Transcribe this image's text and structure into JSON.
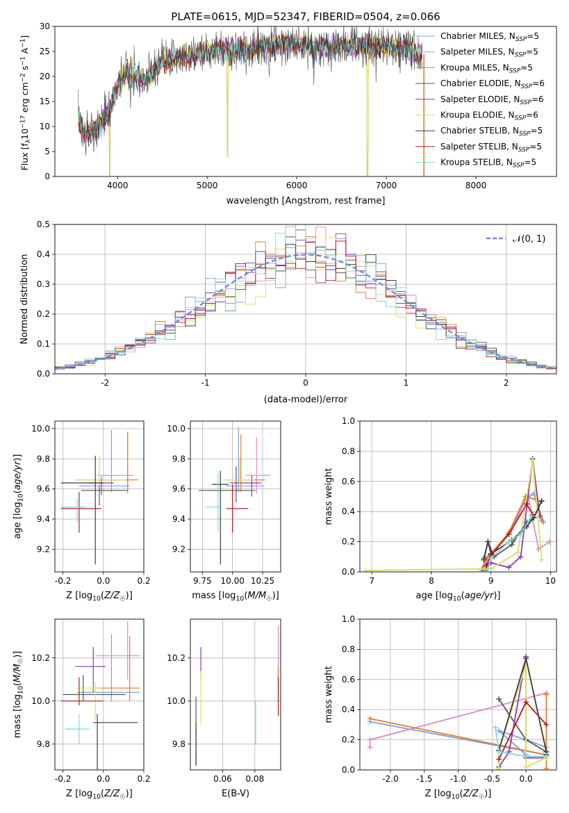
{
  "figure": {
    "title": "PLATE=0615, MJD=52347, FIBERID=0504, z=0.066"
  },
  "models": [
    {
      "name": "Chabrier MILES",
      "nssp": "5",
      "color": "#7f9fe0"
    },
    {
      "name": "Salpeter MILES",
      "nssp": "5",
      "color": "#e089c6"
    },
    {
      "name": "Kroupa MILES",
      "nssp": "5",
      "color": "#e07e2c"
    },
    {
      "name": "Chabrier ELODIE",
      "nssp": "6",
      "color": "#555555"
    },
    {
      "name": "Salpeter ELODIE",
      "nssp": "6",
      "color": "#8a38b4"
    },
    {
      "name": "Kroupa ELODIE",
      "nssp": "6",
      "color": "#d6e25a"
    },
    {
      "name": "Chabrier STELIB",
      "nssp": "5",
      "color": "#3a3a3a"
    },
    {
      "name": "Salpeter STELIB",
      "nssp": "5",
      "color": "#b01c1c"
    },
    {
      "name": "Kroupa STELIB",
      "nssp": "5",
      "color": "#7fd9dc"
    }
  ],
  "chart_data": [
    {
      "type": "line",
      "title": "PLATE=0615, MJD=52347, FIBERID=0504, z=0.066",
      "xlabel": "wavelength [Angstrom, rest frame]",
      "ylabel": "Flux [f_λ 10^-17 erg cm^-2 s^-1 A^-1]",
      "xlim": [
        3300,
        8900
      ],
      "ylim": [
        0,
        30
      ],
      "xticks": [
        4000,
        5000,
        6000,
        7000,
        8000
      ],
      "yticks": [
        0,
        5,
        10,
        15,
        20,
        25,
        30
      ],
      "spectrum_envelope": {
        "x": [
          3560,
          3650,
          3800,
          3900,
          4000,
          4100,
          4300,
          4500,
          4800,
          5000,
          5200,
          5400,
          5600,
          5800,
          6000,
          6200,
          6500,
          6800,
          7000,
          7200,
          7400
        ],
        "y": [
          11,
          8.5,
          10,
          13,
          18,
          21,
          19,
          23,
          24,
          25,
          25.5,
          25,
          26,
          26.5,
          26.5,
          25.5,
          26,
          26,
          26,
          25.5,
          24.5
        ]
      },
      "features": [
        {
          "x": 3912,
          "y": 0
        },
        {
          "x": 5227,
          "y": 4
        },
        {
          "x": 6790,
          "y": 0
        },
        {
          "x": 7420,
          "y": 0
        }
      ],
      "legend_position": "right"
    },
    {
      "type": "step",
      "xlabel": "(data-model)/error",
      "ylabel": "Normed distribution",
      "xlim": [
        -2.5,
        2.5
      ],
      "ylim": [
        0,
        0.5
      ],
      "xticks": [
        -2,
        -1,
        0,
        1,
        2
      ],
      "yticks": [
        0.0,
        0.1,
        0.2,
        0.3,
        0.4,
        0.5
      ],
      "bin_width": 0.1,
      "reference_curve": {
        "name": "𝒩(0, 1)",
        "mean": 0,
        "sigma": 1
      },
      "legend_position": "top-right"
    },
    {
      "type": "errorbar",
      "xlabel": "Z [log10(Z/Z☉)]",
      "ylabel": "age  [log10(age/yr)]",
      "xlim": [
        -0.24,
        0.2
      ],
      "ylim": [
        9.05,
        10.05
      ],
      "xticks": [
        -0.2,
        0.0,
        0.2
      ],
      "yticks": [
        9.2,
        9.4,
        9.6,
        9.8,
        10.0
      ],
      "points": [
        {
          "x": 0.04,
          "y": 9.62,
          "xerr": [
            0.16,
            0.09
          ],
          "yerr": [
            0.04,
            0.37
          ]
        },
        {
          "x": 0.12,
          "y": 9.69,
          "xerr": [
            0.15,
            0.03
          ],
          "yerr": [
            0.11,
            0.29
          ]
        },
        {
          "x": 0.12,
          "y": 9.66,
          "xerr": [
            0.15,
            0.05
          ],
          "yerr": [
            0.09,
            0.32
          ]
        },
        {
          "x": -0.02,
          "y": 9.59,
          "xerr": [
            0.09,
            0.14
          ],
          "yerr": [
            0.1,
            0.07
          ]
        },
        {
          "x": -0.01,
          "y": 9.64,
          "xerr": [
            0.06,
            0.06
          ],
          "yerr": [
            0.08,
            0.04
          ]
        },
        {
          "x": -0.02,
          "y": 9.66,
          "xerr": [
            0.12,
            0.13
          ],
          "yerr": [
            0.04,
            0.16
          ]
        },
        {
          "x": -0.04,
          "y": 9.64,
          "xerr": [
            0.17,
            0.04
          ],
          "yerr": [
            0.54,
            0.18
          ]
        },
        {
          "x": -0.12,
          "y": 9.47,
          "xerr": [
            0.09,
            0.11
          ],
          "yerr": [
            0.16,
            0.11
          ]
        },
        {
          "x": -0.13,
          "y": 9.48,
          "xerr": [
            0.08,
            0.04
          ],
          "yerr": [
            0.1,
            0.06
          ]
        }
      ]
    },
    {
      "type": "errorbar",
      "xlabel": "mass [log10(M/M☉)]",
      "ylabel": "",
      "xlim": [
        9.65,
        10.4
      ],
      "ylim": [
        9.05,
        10.05
      ],
      "xticks": [
        9.75,
        10.0,
        10.25
      ],
      "yticks": [
        9.2,
        9.4,
        9.6,
        9.8,
        10.0
      ],
      "points": [
        {
          "x": 10.05,
          "y": 9.62,
          "xerr": [
            0.1,
            0.21
          ],
          "yerr": [
            0.04,
            0.39
          ]
        },
        {
          "x": 10.2,
          "y": 9.69,
          "xerr": [
            0.09,
            0.11
          ],
          "yerr": [
            0.12,
            0.25
          ]
        },
        {
          "x": 10.07,
          "y": 9.66,
          "xerr": [
            0.07,
            0.2
          ],
          "yerr": [
            0.08,
            0.3
          ]
        },
        {
          "x": 10.03,
          "y": 9.59,
          "xerr": [
            0.31,
            0.16
          ],
          "yerr": [
            0.08,
            0.16
          ]
        },
        {
          "x": 10.16,
          "y": 9.64,
          "xerr": [
            0.18,
            0.08
          ],
          "yerr": [
            0.09,
            0.05
          ]
        },
        {
          "x": 10.06,
          "y": 9.66,
          "xerr": [
            0.14,
            0.12
          ],
          "yerr": [
            0.05,
            0.15
          ]
        },
        {
          "x": 9.9,
          "y": 9.63,
          "xerr": [
            0.07,
            0.07
          ],
          "yerr": [
            0.53,
            0.09
          ]
        },
        {
          "x": 10.0,
          "y": 9.47,
          "xerr": [
            0.05,
            0.13
          ],
          "yerr": [
            0.16,
            0.16
          ]
        },
        {
          "x": 9.88,
          "y": 9.48,
          "xerr": [
            0.11,
            0.03
          ],
          "yerr": [
            0.16,
            0.23
          ]
        }
      ]
    },
    {
      "type": "line",
      "xlabel": "age  [log10(age/yr)]",
      "ylabel": "mass weight",
      "xlim": [
        6.8,
        10.1
      ],
      "ylim": [
        0,
        1
      ],
      "xticks": [
        7,
        8,
        9,
        10
      ],
      "yticks": [
        0.0,
        0.2,
        0.4,
        0.6,
        0.8,
        1.0
      ],
      "series": [
        {
          "model": 0,
          "x": [
            8.85,
            8.92,
            9.0,
            9.3,
            9.58,
            9.72,
            9.85
          ],
          "y": [
            0.01,
            0.08,
            0.12,
            0.25,
            0.48,
            0.52,
            0.34
          ]
        },
        {
          "model": 1,
          "x": [
            8.88,
            8.95,
            9.05,
            9.35,
            9.62,
            9.8,
            9.98
          ],
          "y": [
            0.02,
            0.1,
            0.14,
            0.28,
            0.51,
            0.15,
            0.2
          ]
        },
        {
          "model": 2,
          "x": [
            8.85,
            8.92,
            9.0,
            9.3,
            9.58,
            9.75,
            9.88
          ],
          "y": [
            0.02,
            0.09,
            0.12,
            0.26,
            0.5,
            0.48,
            0.33
          ]
        },
        {
          "model": 3,
          "x": [
            8.88,
            8.95,
            9.05,
            9.35,
            9.6,
            9.72,
            9.85
          ],
          "y": [
            0.09,
            0.2,
            0.1,
            0.18,
            0.33,
            0.36,
            0.47
          ]
        },
        {
          "model": 4,
          "x": [
            8.9,
            8.95,
            9.0,
            9.3,
            9.5,
            9.7,
            9.82
          ],
          "y": [
            0.01,
            0.05,
            0.06,
            0.03,
            0.1,
            0.75,
            0.37
          ]
        },
        {
          "model": 5,
          "x": [
            6.9,
            8.9,
            9.0,
            9.45,
            9.7,
            9.85
          ],
          "y": [
            0.01,
            0.02,
            0.02,
            0.13,
            0.74,
            0.08
          ]
        },
        {
          "model": 6,
          "x": [
            8.88,
            8.95,
            9.0,
            9.35,
            9.6,
            9.72,
            9.85
          ],
          "y": [
            0.08,
            0.2,
            0.12,
            0.21,
            0.3,
            0.36,
            0.47
          ]
        },
        {
          "model": 7,
          "x": [
            8.92,
            9.0,
            9.3,
            9.6,
            9.7
          ],
          "y": [
            0.04,
            0.11,
            0.25,
            0.45,
            0.38
          ]
        },
        {
          "model": 8,
          "x": [
            8.95,
            9.0,
            9.3,
            9.5,
            9.68
          ],
          "y": [
            0.02,
            0.09,
            0.2,
            0.25,
            0.37
          ]
        }
      ]
    },
    {
      "type": "errorbar",
      "xlabel": "Z [log10(Z/Z☉)]",
      "ylabel": "mass [log10(M/M☉)]",
      "xlim": [
        -0.24,
        0.2
      ],
      "ylim": [
        9.68,
        10.38
      ],
      "xticks": [
        -0.2,
        0.0,
        0.2
      ],
      "yticks": [
        9.8,
        10.0,
        10.2
      ],
      "points": [
        {
          "x": 0.04,
          "y": 10.04,
          "xerr": [
            0.17,
            0.14
          ],
          "yerr": [
            0.04,
            0.27
          ]
        },
        {
          "x": 0.12,
          "y": 10.21,
          "xerr": [
            0.16,
            0.06
          ],
          "yerr": [
            0.11,
            0.16
          ]
        },
        {
          "x": 0.13,
          "y": 10.06,
          "xerr": [
            0.17,
            0.05
          ],
          "yerr": [
            0.06,
            0.24
          ]
        },
        {
          "x": -0.1,
          "y": 10.03,
          "xerr": [
            0.1,
            0.21
          ],
          "yerr": [
            0.03,
            0.09
          ]
        },
        {
          "x": -0.05,
          "y": 10.16,
          "xerr": [
            0.09,
            0.06
          ],
          "yerr": [
            0.12,
            0.09
          ]
        },
        {
          "x": -0.04,
          "y": 10.06,
          "xerr": [
            0.09,
            0.03
          ],
          "yerr": [
            0.15,
            0.03
          ]
        },
        {
          "x": -0.03,
          "y": 9.9,
          "xerr": [
            0.02,
            0.2
          ],
          "yerr": [
            0.23,
            0.04
          ]
        },
        {
          "x": -0.12,
          "y": 10.0,
          "xerr": [
            0.09,
            0.12
          ],
          "yerr": [
            0.02,
            0.11
          ]
        },
        {
          "x": -0.12,
          "y": 9.87,
          "xerr": [
            0.07,
            0.05
          ],
          "yerr": [
            0.07,
            0.07
          ]
        }
      ]
    },
    {
      "type": "errorbar",
      "xlabel": "E(B-V)",
      "ylabel": "",
      "xlim": [
        0.04,
        0.096
      ],
      "ylim": [
        9.68,
        10.38
      ],
      "xticks": [
        0.06,
        0.08
      ],
      "yticks": [
        9.8,
        10.0,
        10.2
      ],
      "points": [
        {
          "x": 0.0945,
          "y": 10.1,
          "xerr": [
            0,
            0
          ],
          "yerr": [
            0.04,
            0.2
          ]
        },
        {
          "x": 0.0945,
          "y": 10.2,
          "xerr": [
            0,
            0
          ],
          "yerr": [
            0.07,
            0.15
          ]
        },
        {
          "x": 0.0945,
          "y": 10.05,
          "xerr": [
            0,
            0
          ],
          "yerr": [
            0.05,
            0.1
          ]
        },
        {
          "x": 0.0435,
          "y": 9.85,
          "xerr": [
            0,
            0
          ],
          "yerr": [
            0.15,
            0.17
          ]
        },
        {
          "x": 0.0465,
          "y": 10.16,
          "xerr": [
            0,
            0
          ],
          "yerr": [
            0.05,
            0.09
          ]
        },
        {
          "x": 0.0465,
          "y": 10.02,
          "xerr": [
            0,
            0
          ],
          "yerr": [
            0.13,
            0.12
          ]
        },
        {
          "x": 0.0435,
          "y": 9.8,
          "xerr": [
            0,
            0
          ],
          "yerr": [
            0.1,
            0.1
          ]
        },
        {
          "x": 0.0945,
          "y": 10.02,
          "xerr": [
            0,
            0
          ],
          "yerr": [
            0.09,
            0.09
          ]
        },
        {
          "x": 0.0805,
          "y": 9.87,
          "xerr": [
            0,
            0
          ],
          "yerr": [
            0.07,
            0.13
          ]
        }
      ]
    },
    {
      "type": "line",
      "xlabel": "Z [log10(Z/Z☉)]",
      "ylabel": "mass weight",
      "xlim": [
        -2.45,
        0.45
      ],
      "ylim": [
        0,
        1
      ],
      "xticks": [
        -2.0,
        -1.5,
        -1.0,
        -0.5,
        0.0
      ],
      "yticks": [
        0.0,
        0.2,
        0.4,
        0.6,
        0.8,
        1.0
      ],
      "series": [
        {
          "model": 0,
          "x": [
            -2.3,
            0.3,
            0.3,
            0.0,
            -0.4,
            0.0
          ],
          "y": [
            0.32,
            0.1,
            0.15,
            0.2,
            0.26,
            0.1
          ]
        },
        {
          "model": 1,
          "x": [
            -2.3,
            -2.3,
            0.3,
            0.3
          ],
          "y": [
            0.15,
            0.2,
            0.51,
            0.5
          ]
        },
        {
          "model": 2,
          "x": [
            -2.3,
            0.3,
            0.3,
            0.3
          ],
          "y": [
            0.34,
            0.1,
            0.5,
            0.01
          ]
        },
        {
          "model": 3,
          "x": [
            -0.4,
            0.0,
            0.3,
            0.3
          ],
          "y": [
            0.47,
            0.2,
            0.12,
            0.1
          ]
        },
        {
          "model": 4,
          "x": [
            -0.4,
            -0.25,
            0.0,
            0.0,
            0.3
          ],
          "y": [
            0.02,
            0.12,
            0.75,
            0.08,
            0.08
          ]
        },
        {
          "model": 5,
          "x": [
            -0.4,
            -0.4,
            0.0,
            0.0,
            0.3
          ],
          "y": [
            0.01,
            0.13,
            0.7,
            0.02,
            0.08
          ]
        },
        {
          "model": 6,
          "x": [
            -0.4,
            0.0,
            0.3,
            0.3
          ],
          "y": [
            0.13,
            0.74,
            0.12,
            0.1
          ]
        },
        {
          "model": 7,
          "x": [
            -0.4,
            0.0,
            0.3
          ],
          "y": [
            0.07,
            0.45,
            0.3
          ]
        },
        {
          "model": 8,
          "x": [
            -0.45,
            -0.4,
            0.0,
            0.3
          ],
          "y": [
            0.28,
            0.12,
            0.09,
            0.09
          ]
        }
      ]
    }
  ]
}
